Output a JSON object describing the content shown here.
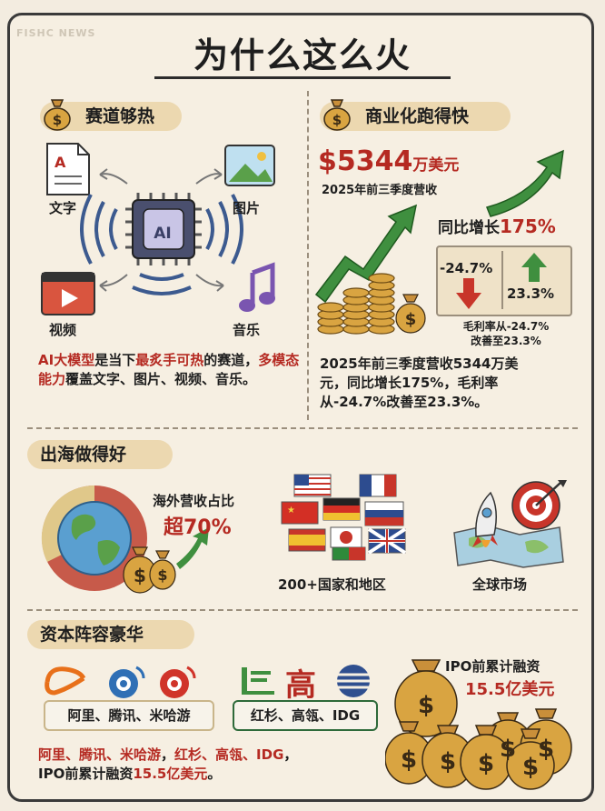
{
  "watermark": "FISHC NEWS",
  "title": "为什么这么火",
  "sec1": {
    "heading": "赛道够热",
    "labels": {
      "text": "文字",
      "image": "图片",
      "video": "视频",
      "music": "音乐"
    },
    "chip": "AI",
    "para": {
      "p1": "AI大模型",
      "p2": "是当下",
      "p3": "最炙手可热",
      "p4": "的赛道，",
      "p5": "多模态能力",
      "p6": "覆盖文字、图片、",
      "p7": "视频、音乐。"
    }
  },
  "sec2": {
    "heading": "商业化跑得快",
    "revenue_value": "$5344",
    "revenue_unit": "万美元",
    "revenue_sub": "2025年前三季度营收",
    "growth_label": "同比增长",
    "growth_value": "175%",
    "margin_from": "-24.7%",
    "margin_to": "23.3%",
    "margin_note1": "毛利率从-24.7%",
    "margin_note2": "改善至23.3%",
    "para": {
      "l1": "2025年前三季度营收5344万美",
      "l2": "元，同比增长175%，毛利率",
      "l3": "从-24.7%改善至23.3%。"
    }
  },
  "sec3": {
    "heading": "出海做得好",
    "overseas_label": "海外营收占比",
    "overseas_value": "超70%",
    "countries": "200+国家和地区",
    "global": "全球市场"
  },
  "sec4": {
    "heading": "资本阵容豪华",
    "investors1": "阿里、腾讯、米哈游",
    "investors2": "红杉、高瓴、IDG",
    "gao_char": "高",
    "ipo_label": "IPO前累计融资",
    "ipo_value": "15.5亿美元",
    "para": {
      "q1": "阿里、腾讯、米哈游",
      "q2": "，",
      "q3": "红杉、高瓴、IDG",
      "q4": "，",
      "q5": "IPO前累计融资",
      "q6": "15.5亿美元",
      "q7": "。"
    }
  },
  "colors": {
    "accent_red": "#b52a22",
    "arrow_green": "#3f8f3f",
    "banner": "#ecd8b0",
    "coin_gold": "#d9a441"
  }
}
